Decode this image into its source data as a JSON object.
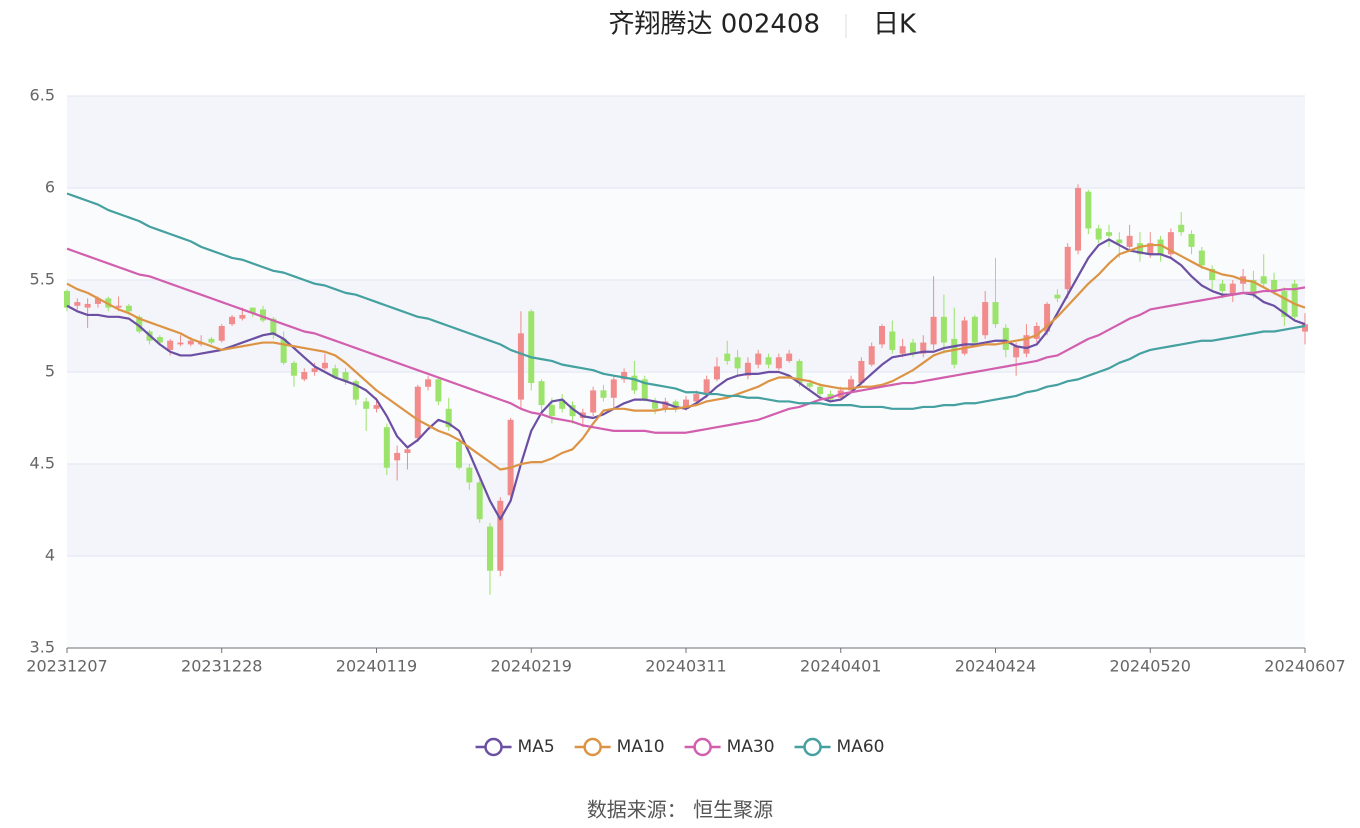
{
  "chart_data": {
    "type": "candlestick",
    "title": "齐翔腾达 002408",
    "subtitle": "日K",
    "source": "数据来源： 恒生聚源",
    "up_color": "#f28b8b",
    "down_color": "#9be36a",
    "ylim": [
      3.5,
      6.5
    ],
    "yticks": [
      3.5,
      4,
      4.5,
      5,
      5.5,
      6,
      6.5
    ],
    "grid": true,
    "split_area": true,
    "legend": "bottom",
    "categories": [
      "20231207",
      null,
      null,
      null,
      null,
      null,
      null,
      null,
      null,
      null,
      null,
      null,
      null,
      null,
      null,
      "20231228",
      null,
      null,
      null,
      null,
      null,
      null,
      null,
      null,
      null,
      null,
      null,
      null,
      null,
      null,
      "20240119",
      null,
      null,
      null,
      null,
      null,
      null,
      null,
      null,
      null,
      null,
      null,
      null,
      null,
      null,
      "20240219",
      null,
      null,
      null,
      null,
      null,
      null,
      null,
      null,
      null,
      null,
      null,
      null,
      null,
      null,
      "20240311",
      null,
      null,
      null,
      null,
      null,
      null,
      null,
      null,
      null,
      null,
      null,
      null,
      null,
      null,
      "20240401",
      null,
      null,
      null,
      null,
      null,
      null,
      null,
      null,
      null,
      null,
      null,
      null,
      null,
      null,
      "20240424",
      null,
      null,
      null,
      null,
      null,
      null,
      null,
      null,
      null,
      null,
      null,
      null,
      null,
      null,
      "20240520",
      null,
      null,
      null,
      null,
      null,
      null,
      null,
      null,
      null,
      null,
      null,
      null,
      null,
      null,
      "20240607"
    ],
    "open": [
      5.44,
      5.36,
      5.35,
      5.37,
      5.4,
      5.35,
      5.36,
      5.3,
      5.22,
      5.19,
      5.12,
      5.15,
      5.15,
      5.15,
      5.18,
      5.17,
      5.26,
      5.29,
      5.35,
      5.34,
      5.29,
      5.18,
      5.05,
      4.96,
      5.0,
      5.02,
      5.02,
      5.0,
      4.95,
      4.84,
      4.8,
      4.7,
      4.52,
      4.56,
      4.64,
      4.92,
      4.96,
      4.8,
      4.62,
      4.48,
      4.4,
      4.16,
      3.92,
      4.33,
      4.85,
      5.33,
      4.95,
      4.82,
      4.85,
      4.82,
      4.75,
      4.78,
      4.9,
      4.86,
      4.96,
      4.98,
      4.96,
      4.84,
      4.8,
      4.84,
      4.8,
      4.84,
      4.88,
      4.96,
      5.1,
      5.08,
      4.98,
      5.04,
      5.08,
      5.02,
      5.06,
      5.06,
      4.94,
      4.92,
      4.88,
      4.86,
      4.9,
      4.94,
      5.04,
      5.15,
      5.22,
      5.1,
      5.16,
      5.1,
      5.15,
      5.3,
      5.18,
      5.1,
      5.3,
      5.2,
      5.38,
      5.24,
      5.08,
      5.1,
      5.18,
      5.22,
      5.42,
      5.45,
      5.66,
      5.98,
      5.78,
      5.76,
      5.72,
      5.68,
      5.7,
      5.64,
      5.72,
      5.64,
      5.8,
      5.75,
      5.66,
      5.56,
      5.48,
      5.42,
      5.48,
      5.5,
      5.52,
      5.5,
      5.44,
      5.48,
      5.22
    ],
    "close": [
      5.35,
      5.38,
      5.37,
      5.4,
      5.35,
      5.36,
      5.33,
      5.22,
      5.17,
      5.16,
      5.17,
      5.16,
      5.17,
      5.16,
      5.16,
      5.25,
      5.3,
      5.31,
      5.32,
      5.28,
      5.2,
      5.05,
      4.98,
      5.0,
      5.02,
      5.05,
      4.97,
      4.95,
      4.85,
      4.8,
      4.82,
      4.48,
      4.56,
      4.58,
      4.92,
      4.96,
      4.84,
      4.7,
      4.48,
      4.4,
      4.2,
      3.92,
      4.3,
      4.74,
      5.21,
      4.94,
      4.82,
      4.76,
      4.8,
      4.76,
      4.78,
      4.9,
      4.86,
      4.96,
      5.0,
      4.9,
      4.85,
      4.8,
      4.84,
      4.8,
      4.85,
      4.88,
      4.96,
      5.03,
      5.06,
      5.02,
      5.05,
      5.1,
      5.04,
      5.08,
      5.1,
      4.94,
      4.92,
      4.88,
      4.85,
      4.9,
      4.96,
      5.06,
      5.14,
      5.25,
      5.12,
      5.14,
      5.1,
      5.16,
      5.3,
      5.16,
      5.04,
      5.28,
      5.16,
      5.38,
      5.26,
      5.12,
      5.14,
      5.2,
      5.25,
      5.37,
      5.4,
      5.68,
      6.0,
      5.78,
      5.72,
      5.74,
      5.7,
      5.74,
      5.64,
      5.7,
      5.64,
      5.76,
      5.76,
      5.68,
      5.58,
      5.5,
      5.44,
      5.48,
      5.52,
      5.42,
      5.48,
      5.44,
      5.3,
      5.3,
      5.26
    ],
    "low": [
      5.33,
      5.34,
      5.24,
      5.35,
      5.33,
      5.33,
      5.31,
      5.21,
      5.15,
      5.15,
      5.09,
      5.14,
      5.14,
      5.14,
      5.15,
      5.16,
      5.25,
      5.28,
      5.3,
      5.27,
      5.18,
      5.04,
      4.92,
      4.95,
      4.98,
      5.01,
      4.96,
      4.93,
      4.82,
      4.68,
      4.78,
      4.44,
      4.41,
      4.47,
      4.62,
      4.9,
      4.82,
      4.68,
      4.47,
      4.36,
      4.18,
      3.79,
      3.89,
      4.3,
      4.8,
      4.9,
      4.78,
      4.72,
      4.78,
      4.72,
      4.7,
      4.76,
      4.84,
      4.8,
      4.94,
      4.88,
      4.84,
      4.77,
      4.78,
      4.78,
      4.79,
      4.83,
      4.86,
      4.95,
      5.04,
      4.98,
      4.96,
      5.02,
      5.02,
      5.01,
      5.05,
      4.92,
      4.9,
      4.86,
      4.84,
      4.85,
      4.89,
      4.93,
      5.03,
      5.13,
      5.1,
      5.08,
      5.08,
      5.08,
      5.12,
      5.1,
      5.02,
      5.09,
      5.14,
      5.18,
      5.24,
      5.08,
      4.98,
      5.08,
      5.16,
      5.2,
      5.38,
      5.4,
      5.64,
      5.75,
      5.7,
      5.68,
      5.62,
      5.66,
      5.6,
      5.62,
      5.6,
      5.62,
      5.74,
      5.64,
      5.56,
      5.44,
      5.4,
      5.38,
      5.44,
      5.4,
      5.46,
      5.42,
      5.25,
      5.28,
      5.15
    ],
    "high": [
      5.45,
      5.4,
      5.4,
      5.41,
      5.41,
      5.41,
      5.37,
      5.31,
      5.23,
      5.2,
      5.18,
      5.2,
      5.19,
      5.2,
      5.19,
      5.26,
      5.31,
      5.35,
      5.35,
      5.36,
      5.3,
      5.22,
      5.06,
      5.02,
      5.05,
      5.1,
      5.04,
      5.02,
      4.96,
      4.86,
      4.86,
      4.72,
      4.6,
      4.6,
      4.93,
      4.98,
      4.97,
      4.86,
      4.64,
      4.5,
      4.42,
      4.18,
      4.32,
      4.75,
      5.33,
      5.34,
      4.96,
      4.86,
      4.88,
      4.84,
      4.8,
      4.92,
      4.93,
      4.98,
      5.02,
      5.06,
      4.98,
      4.86,
      4.86,
      4.85,
      4.87,
      4.9,
      4.98,
      5.08,
      5.17,
      5.12,
      5.08,
      5.12,
      5.1,
      5.1,
      5.12,
      5.07,
      4.96,
      4.94,
      4.9,
      4.92,
      4.98,
      5.08,
      5.16,
      5.26,
      5.28,
      5.18,
      5.18,
      5.2,
      5.52,
      5.42,
      5.35,
      5.3,
      5.31,
      5.44,
      5.62,
      5.26,
      5.16,
      5.26,
      5.27,
      5.38,
      5.45,
      5.7,
      6.02,
      5.99,
      5.8,
      5.8,
      5.76,
      5.8,
      5.76,
      5.76,
      5.74,
      5.78,
      5.87,
      5.77,
      5.68,
      5.58,
      5.5,
      5.5,
      5.56,
      5.55,
      5.64,
      5.54,
      5.46,
      5.5,
      5.32
    ],
    "series": [
      {
        "name": "MA5",
        "color": "#6b4fa3",
        "values": [
          5.36,
          5.33,
          5.31,
          5.31,
          5.3,
          5.3,
          5.29,
          5.25,
          5.2,
          5.15,
          5.11,
          5.09,
          5.09,
          5.1,
          5.11,
          5.12,
          5.14,
          5.16,
          5.18,
          5.2,
          5.21,
          5.18,
          5.13,
          5.08,
          5.03,
          5.0,
          4.97,
          4.95,
          4.93,
          4.9,
          4.85,
          4.76,
          4.65,
          4.59,
          4.63,
          4.69,
          4.74,
          4.72,
          4.68,
          4.56,
          4.43,
          4.3,
          4.2,
          4.3,
          4.5,
          4.68,
          4.78,
          4.84,
          4.85,
          4.8,
          4.76,
          4.75,
          4.77,
          4.8,
          4.83,
          4.85,
          4.85,
          4.84,
          4.83,
          4.81,
          4.8,
          4.83,
          4.87,
          4.92,
          4.96,
          4.98,
          4.99,
          4.99,
          5.0,
          5.0,
          4.98,
          4.94,
          4.9,
          4.86,
          4.84,
          4.85,
          4.89,
          4.94,
          4.99,
          5.04,
          5.08,
          5.09,
          5.1,
          5.11,
          5.11,
          5.13,
          5.14,
          5.15,
          5.15,
          5.16,
          5.17,
          5.17,
          5.14,
          5.13,
          5.15,
          5.22,
          5.32,
          5.42,
          5.52,
          5.62,
          5.69,
          5.72,
          5.69,
          5.66,
          5.65,
          5.64,
          5.64,
          5.62,
          5.58,
          5.52,
          5.47,
          5.44,
          5.42,
          5.42,
          5.43,
          5.42,
          5.38,
          5.36,
          5.32,
          5.28,
          5.26
        ]
      },
      {
        "name": "MA10",
        "color": "#dc9444",
        "values": [
          5.48,
          5.45,
          5.43,
          5.4,
          5.37,
          5.34,
          5.32,
          5.29,
          5.27,
          5.25,
          5.23,
          5.21,
          5.18,
          5.16,
          5.14,
          5.12,
          5.13,
          5.14,
          5.15,
          5.16,
          5.16,
          5.15,
          5.14,
          5.13,
          5.12,
          5.11,
          5.09,
          5.05,
          5.0,
          4.95,
          4.9,
          4.86,
          4.82,
          4.78,
          4.74,
          4.71,
          4.68,
          4.66,
          4.63,
          4.59,
          4.55,
          4.51,
          4.47,
          4.48,
          4.5,
          4.51,
          4.51,
          4.53,
          4.56,
          4.58,
          4.64,
          4.72,
          4.79,
          4.8,
          4.8,
          4.79,
          4.79,
          4.79,
          4.8,
          4.8,
          4.81,
          4.82,
          4.84,
          4.85,
          4.86,
          4.88,
          4.9,
          4.92,
          4.95,
          4.97,
          4.97,
          4.96,
          4.95,
          4.93,
          4.92,
          4.91,
          4.91,
          4.92,
          4.92,
          4.93,
          4.95,
          4.98,
          5.01,
          5.05,
          5.09,
          5.11,
          5.12,
          5.13,
          5.14,
          5.15,
          5.15,
          5.16,
          5.17,
          5.18,
          5.2,
          5.25,
          5.3,
          5.36,
          5.42,
          5.48,
          5.53,
          5.59,
          5.64,
          5.66,
          5.68,
          5.69,
          5.69,
          5.66,
          5.63,
          5.6,
          5.57,
          5.55,
          5.53,
          5.52,
          5.5,
          5.49,
          5.46,
          5.43,
          5.4,
          5.37,
          5.35
        ]
      },
      {
        "name": "MA30",
        "color": "#d25fae",
        "values": [
          5.67,
          5.65,
          5.63,
          5.61,
          5.59,
          5.57,
          5.55,
          5.53,
          5.52,
          5.5,
          5.48,
          5.46,
          5.44,
          5.42,
          5.4,
          5.38,
          5.36,
          5.34,
          5.32,
          5.3,
          5.28,
          5.26,
          5.24,
          5.22,
          5.21,
          5.19,
          5.17,
          5.15,
          5.13,
          5.11,
          5.09,
          5.07,
          5.05,
          5.03,
          5.01,
          4.99,
          4.97,
          4.95,
          4.93,
          4.91,
          4.89,
          4.87,
          4.85,
          4.83,
          4.8,
          4.78,
          4.77,
          4.75,
          4.74,
          4.73,
          4.71,
          4.7,
          4.69,
          4.68,
          4.68,
          4.68,
          4.68,
          4.67,
          4.67,
          4.67,
          4.67,
          4.68,
          4.69,
          4.7,
          4.71,
          4.72,
          4.73,
          4.74,
          4.76,
          4.78,
          4.8,
          4.81,
          4.83,
          4.85,
          4.86,
          4.88,
          4.89,
          4.9,
          4.91,
          4.92,
          4.93,
          4.94,
          4.94,
          4.95,
          4.96,
          4.97,
          4.98,
          4.99,
          5.0,
          5.01,
          5.02,
          5.03,
          5.04,
          5.05,
          5.06,
          5.08,
          5.09,
          5.12,
          5.15,
          5.18,
          5.2,
          5.23,
          5.26,
          5.29,
          5.31,
          5.34,
          5.35,
          5.36,
          5.37,
          5.38,
          5.39,
          5.4,
          5.41,
          5.42,
          5.43,
          5.43,
          5.44,
          5.44,
          5.45,
          5.45,
          5.46
        ]
      },
      {
        "name": "MA60",
        "color": "#45a0a0",
        "values": [
          5.97,
          5.95,
          5.93,
          5.91,
          5.88,
          5.86,
          5.84,
          5.82,
          5.79,
          5.77,
          5.75,
          5.73,
          5.71,
          5.68,
          5.66,
          5.64,
          5.62,
          5.61,
          5.59,
          5.57,
          5.55,
          5.54,
          5.52,
          5.5,
          5.48,
          5.47,
          5.45,
          5.43,
          5.42,
          5.4,
          5.38,
          5.36,
          5.34,
          5.32,
          5.3,
          5.29,
          5.27,
          5.25,
          5.23,
          5.21,
          5.19,
          5.17,
          5.15,
          5.12,
          5.1,
          5.08,
          5.07,
          5.06,
          5.04,
          5.03,
          5.02,
          5.01,
          4.99,
          4.98,
          4.97,
          4.96,
          4.94,
          4.93,
          4.92,
          4.91,
          4.89,
          4.89,
          4.88,
          4.88,
          4.87,
          4.87,
          4.86,
          4.86,
          4.85,
          4.84,
          4.84,
          4.83,
          4.83,
          4.83,
          4.82,
          4.82,
          4.82,
          4.81,
          4.81,
          4.81,
          4.8,
          4.8,
          4.8,
          4.81,
          4.81,
          4.82,
          4.82,
          4.83,
          4.83,
          4.84,
          4.85,
          4.86,
          4.87,
          4.89,
          4.9,
          4.92,
          4.93,
          4.95,
          4.96,
          4.98,
          5.0,
          5.02,
          5.05,
          5.07,
          5.1,
          5.12,
          5.13,
          5.14,
          5.15,
          5.16,
          5.17,
          5.17,
          5.18,
          5.19,
          5.2,
          5.21,
          5.22,
          5.22,
          5.23,
          5.24,
          5.25
        ]
      }
    ]
  }
}
